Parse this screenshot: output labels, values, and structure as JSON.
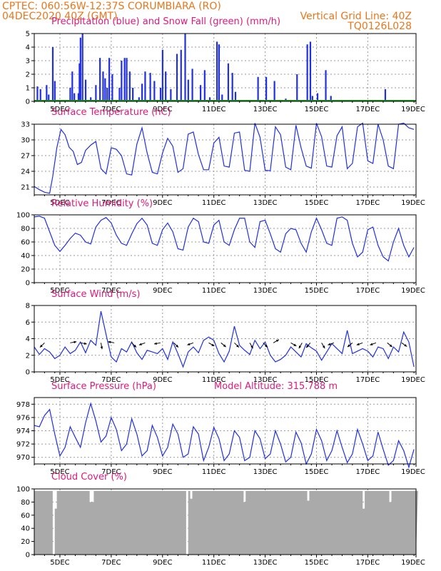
{
  "header": {
    "line1_left": "CPTEC:  060:56W-12:37S  CORUMBIARA (RO)",
    "line2_left": "04DEC2020 40Z (GMT)",
    "line2_right": "Vertical Grid Line: 40Z",
    "line3_right": "TQ0126L028"
  },
  "colors": {
    "header": "#e8771c",
    "title": "#e0187c",
    "line": "#2030e0",
    "snow": "#1a9a1a",
    "cloud": "#aaaaaa"
  },
  "x_axis": {
    "labels": [
      "5DEC",
      "7DEC",
      "9DEC",
      "11DEC",
      "13DEC",
      "15DEC",
      "17DEC",
      "19DEC"
    ]
  },
  "chart_data": [
    {
      "type": "bar",
      "title": "Precipitation (blue) and Snow Fall (green) (mm/h)",
      "ylim": [
        0,
        5
      ],
      "yticks": [
        0,
        1,
        2,
        3,
        4,
        5
      ],
      "series": [
        {
          "name": "Precipitation (blue)",
          "values": [
            [
              0.3,
              1.1
            ],
            [
              0.6,
              0.9
            ],
            [
              1.2,
              1.2
            ],
            [
              1.4,
              0.5
            ],
            [
              1.8,
              4.0
            ],
            [
              2.0,
              1.5
            ],
            [
              3.5,
              1.0
            ],
            [
              3.7,
              2.2
            ],
            [
              3.9,
              0.6
            ],
            [
              4.3,
              0.6
            ],
            [
              4.4,
              2.8
            ],
            [
              4.5,
              4.7
            ],
            [
              4.7,
              5.0
            ],
            [
              5.0,
              1.6
            ],
            [
              5.5,
              0.3
            ],
            [
              6.0,
              1.2
            ],
            [
              6.4,
              3.2
            ],
            [
              6.7,
              2.2
            ],
            [
              6.9,
              1.7
            ],
            [
              7.1,
              1.0
            ],
            [
              7.3,
              3.2
            ],
            [
              7.6,
              2.0
            ],
            [
              8.3,
              1.0
            ],
            [
              8.5,
              3.0
            ],
            [
              8.8,
              3.2
            ],
            [
              9.0,
              3.2
            ],
            [
              9.3,
              2.2
            ],
            [
              9.6,
              1.0
            ],
            [
              10.2,
              0.3
            ],
            [
              10.5,
              1.3
            ],
            [
              10.8,
              2.2
            ],
            [
              11.3,
              2.1
            ],
            [
              11.7,
              1.5
            ],
            [
              12.3,
              1.0
            ],
            [
              12.5,
              3.8
            ],
            [
              12.8,
              2.2
            ],
            [
              13.3,
              0.9
            ],
            [
              13.9,
              3.5
            ],
            [
              14.3,
              3.8
            ],
            [
              14.7,
              5.0
            ],
            [
              15.0,
              1.6
            ],
            [
              15.4,
              2.4
            ],
            [
              16.2,
              1.2
            ],
            [
              16.6,
              2.3
            ],
            [
              17.1,
              0.3
            ],
            [
              17.8,
              4.4
            ],
            [
              18.0,
              4.2
            ],
            [
              18.3,
              0.5
            ],
            [
              18.9,
              2.8
            ],
            [
              19.3,
              2.1
            ],
            [
              19.6,
              0.7
            ],
            [
              21.8,
              1.8
            ],
            [
              22.6,
              1.8
            ],
            [
              23.4,
              1.5
            ],
            [
              24.5,
              0.2
            ],
            [
              25.6,
              2.0
            ],
            [
              26.6,
              4.2
            ],
            [
              26.9,
              4.4
            ],
            [
              27.1,
              0.4
            ],
            [
              27.6,
              0.6
            ],
            [
              28.4,
              2.3
            ],
            [
              28.9,
              0.4
            ],
            [
              34.2,
              0.9
            ]
          ]
        },
        {
          "name": "Snow Fall (green)",
          "values": [
            [
              0,
              0
            ],
            [
              37,
              0
            ]
          ]
        }
      ]
    },
    {
      "type": "line",
      "title": "Surface Temperature (nC)",
      "ylim": [
        19.5,
        33
      ],
      "yticks": [
        21,
        24,
        27,
        30,
        33
      ],
      "x": [
        0,
        0.5,
        1.0,
        1.5,
        1.8,
        2.2,
        2.6,
        3.0,
        3.4,
        3.8,
        4.2,
        4.6,
        5.0,
        5.5,
        6.0,
        6.5,
        7.0,
        7.5,
        8.0,
        8.5,
        9.0,
        9.5,
        10.0,
        10.5,
        11.0,
        11.5,
        12.0,
        12.5,
        13.0,
        13.5,
        14.0,
        14.5,
        15.0,
        15.5,
        16.0,
        16.5,
        17.0,
        17.5,
        18.0,
        18.5,
        19.0,
        19.5,
        20.0,
        20.5,
        21.0,
        21.5,
        22.0,
        22.5,
        23.0,
        23.5,
        24.0,
        24.5,
        25.0,
        25.5,
        26.0,
        26.5,
        27.0,
        27.5,
        28.0,
        28.5,
        29.0,
        29.5,
        30.0,
        30.5,
        31.0,
        31.5,
        32.0,
        32.5,
        33.0,
        33.5,
        34.0,
        34.5,
        35.0,
        35.5,
        36.0,
        36.5,
        37.0
      ],
      "values": [
        21.1,
        20.5,
        20.0,
        19.8,
        23.0,
        28.5,
        32.0,
        31.0,
        28.6,
        27.8,
        25.3,
        25.7,
        28.0,
        29.0,
        29.7,
        24.5,
        23.5,
        28.5,
        28.2,
        27.0,
        23.5,
        23.3,
        29.2,
        32.3,
        27.5,
        23.8,
        23.5,
        27.5,
        30.3,
        28.8,
        23.8,
        24.5,
        31.1,
        31.5,
        27.2,
        24.3,
        24.3,
        29.4,
        30.5,
        25.0,
        24.8,
        31.3,
        31.5,
        24.2,
        24.0,
        33.2,
        30.5,
        24.2,
        24.1,
        32.5,
        31.0,
        24.8,
        24.3,
        32.8,
        28.5,
        25.0,
        24.6,
        33.2,
        30.6,
        25.0,
        24.8,
        30.8,
        32.5,
        24.5,
        25.5,
        32.5,
        33.2,
        26.0,
        25.5,
        33.0,
        30.0,
        25.0,
        24.5,
        33.0,
        33.2,
        32.3,
        32.0
      ]
    },
    {
      "type": "line",
      "title": "Relative Humidity (%)",
      "ylim": [
        0,
        100
      ],
      "yticks": [
        0,
        20,
        40,
        60,
        80,
        100
      ],
      "x": [
        0,
        0.5,
        1.0,
        1.5,
        2.0,
        2.5,
        3.0,
        3.5,
        4.0,
        4.5,
        5.0,
        5.5,
        6.0,
        6.5,
        7.0,
        7.5,
        8.0,
        8.5,
        9.0,
        9.5,
        10.0,
        10.5,
        11.0,
        11.5,
        12.0,
        12.5,
        13.0,
        13.5,
        14.0,
        14.5,
        15.0,
        15.5,
        16.0,
        16.5,
        17.0,
        17.5,
        18.0,
        18.5,
        19.0,
        19.5,
        20.0,
        20.5,
        21.0,
        21.5,
        22.0,
        22.5,
        23.0,
        23.5,
        24.0,
        24.5,
        25.0,
        25.5,
        26.0,
        26.5,
        27.0,
        27.5,
        28.0,
        28.5,
        29.0,
        29.5,
        30.0,
        30.5,
        31.0,
        31.5,
        32.0,
        32.5,
        33.0,
        33.5,
        34.0,
        34.5,
        35.0,
        35.5,
        36.0,
        36.5,
        37.0
      ],
      "values": [
        97,
        98,
        95,
        75,
        55,
        46,
        55,
        65,
        73,
        70,
        60,
        57,
        82,
        92,
        96,
        88,
        70,
        58,
        55,
        72,
        87,
        95,
        85,
        58,
        55,
        78,
        88,
        75,
        50,
        48,
        82,
        95,
        90,
        60,
        58,
        85,
        92,
        60,
        55,
        78,
        95,
        95,
        60,
        52,
        90,
        92,
        72,
        50,
        45,
        72,
        80,
        78,
        58,
        45,
        75,
        95,
        78,
        58,
        55,
        95,
        97,
        92,
        58,
        38,
        45,
        78,
        82,
        55,
        38,
        32,
        60,
        80,
        55,
        38,
        52
      ]
    },
    {
      "type": "line",
      "title": "Surface Wind (m/s)",
      "ylim": [
        0,
        8
      ],
      "yticks": [
        0,
        2,
        4,
        6,
        8
      ],
      "x": [
        0,
        0.5,
        1.0,
        1.5,
        2.0,
        2.5,
        3.0,
        3.5,
        4.0,
        4.5,
        5.0,
        5.5,
        6.0,
        6.5,
        7.0,
        7.5,
        8.0,
        8.5,
        9.0,
        9.5,
        10.0,
        10.5,
        11.0,
        11.5,
        12.0,
        12.5,
        13.0,
        13.5,
        14.0,
        14.5,
        15.0,
        15.5,
        16.0,
        16.5,
        17.0,
        17.5,
        18.0,
        18.5,
        19.0,
        19.5,
        20.0,
        20.5,
        21.0,
        21.5,
        22.0,
        22.5,
        23.0,
        23.5,
        24.0,
        24.5,
        25.0,
        25.5,
        26.0,
        26.5,
        27.0,
        27.5,
        28.0,
        28.5,
        29.0,
        29.5,
        30.0,
        30.5,
        31.0,
        31.5,
        32.0,
        32.5,
        33.0,
        33.5,
        34.0,
        34.5,
        35.0,
        35.5,
        36.0,
        36.5,
        37.0
      ],
      "values": [
        3.0,
        2.1,
        2.8,
        2.4,
        1.6,
        2.0,
        3.0,
        2.2,
        2.6,
        3.6,
        2.3,
        3.8,
        3.2,
        7.3,
        4.5,
        1.8,
        1.2,
        2.8,
        2.4,
        3.6,
        2.3,
        1.5,
        2.6,
        2.4,
        2.2,
        2.8,
        1.5,
        3.6,
        2.2,
        0.6,
        2.4,
        3.0,
        2.3,
        3.8,
        4.2,
        3.8,
        2.2,
        1.2,
        2.5,
        5.5,
        3.2,
        2.6,
        2.1,
        3.8,
        2.8,
        3.6,
        2.0,
        1.2,
        1.5,
        2.0,
        3.0,
        2.4,
        1.8,
        3.4,
        2.9,
        2.5,
        1.4,
        2.4,
        3.4,
        2.8,
        2.2,
        5.0,
        2.2,
        2.5,
        2.8,
        2.5,
        1.8,
        3.0,
        2.8,
        1.6,
        3.0,
        2.4,
        4.8,
        3.6,
        0.6
      ]
    },
    {
      "type": "line",
      "title": "Surface Pressure (hPa)",
      "annotation": "Model Altitude: 315.788 m",
      "ylim": [
        969,
        979
      ],
      "yticks": [
        970,
        972,
        974,
        976,
        978
      ],
      "x": [
        0,
        0.5,
        1.0,
        1.5,
        2.0,
        2.5,
        3.0,
        3.5,
        4.0,
        4.5,
        5.0,
        5.5,
        6.0,
        6.5,
        7.0,
        7.5,
        8.0,
        8.5,
        9.0,
        9.5,
        10.0,
        10.5,
        11.0,
        11.5,
        12.0,
        12.5,
        13.0,
        13.5,
        14.0,
        14.5,
        15.0,
        15.5,
        16.0,
        16.5,
        17.0,
        17.5,
        18.0,
        18.5,
        19.0,
        19.5,
        20.0,
        20.5,
        21.0,
        21.5,
        22.0,
        22.5,
        23.0,
        23.5,
        24.0,
        24.5,
        25.0,
        25.5,
        26.0,
        26.5,
        27.0,
        27.5,
        28.0,
        28.5,
        29.0,
        29.5,
        30.0,
        30.5,
        31.0,
        31.5,
        32.0,
        32.5,
        33.0,
        33.5,
        34.0,
        34.5,
        35.0,
        35.5,
        36.0,
        36.5,
        37.0
      ],
      "values": [
        974.8,
        974.6,
        976.3,
        977.2,
        973.5,
        970.2,
        971.5,
        974.6,
        973.0,
        971.5,
        975.2,
        978.1,
        975.5,
        972.3,
        973.2,
        976.0,
        974.2,
        971.0,
        972.0,
        975.8,
        973.5,
        970.2,
        971.0,
        974.8,
        973.0,
        970.2,
        971.5,
        975.0,
        973.5,
        970.0,
        970.5,
        974.6,
        973.5,
        969.5,
        971.5,
        974.5,
        972.8,
        969.5,
        970.5,
        974.0,
        973.0,
        969.5,
        970.0,
        974.0,
        972.8,
        969.8,
        970.5,
        974.0,
        972.0,
        969.3,
        970.0,
        973.8,
        972.2,
        969.0,
        970.5,
        974.2,
        972.5,
        969.5,
        971.0,
        974.0,
        971.5,
        969.2,
        970.5,
        974.2,
        972.0,
        969.5,
        970.2,
        973.8,
        971.2,
        968.8,
        969.5,
        972.5,
        971.0,
        968.5,
        971.2
      ]
    },
    {
      "type": "bar",
      "title": "Cloud Cover (%)",
      "ylim": [
        0,
        100
      ],
      "yticks": [
        0,
        20,
        40,
        60,
        80,
        100
      ],
      "note": "near-continuous cover ~95-100% with occasional dips",
      "dips": [
        [
          1.75,
          0
        ],
        [
          2.0,
          70
        ],
        [
          5.5,
          80
        ],
        [
          14.8,
          0
        ],
        [
          15.2,
          85
        ],
        [
          20.4,
          80
        ],
        [
          26.6,
          82
        ],
        [
          32.0,
          70
        ],
        [
          34.6,
          80
        ]
      ],
      "base_value": 97
    }
  ]
}
